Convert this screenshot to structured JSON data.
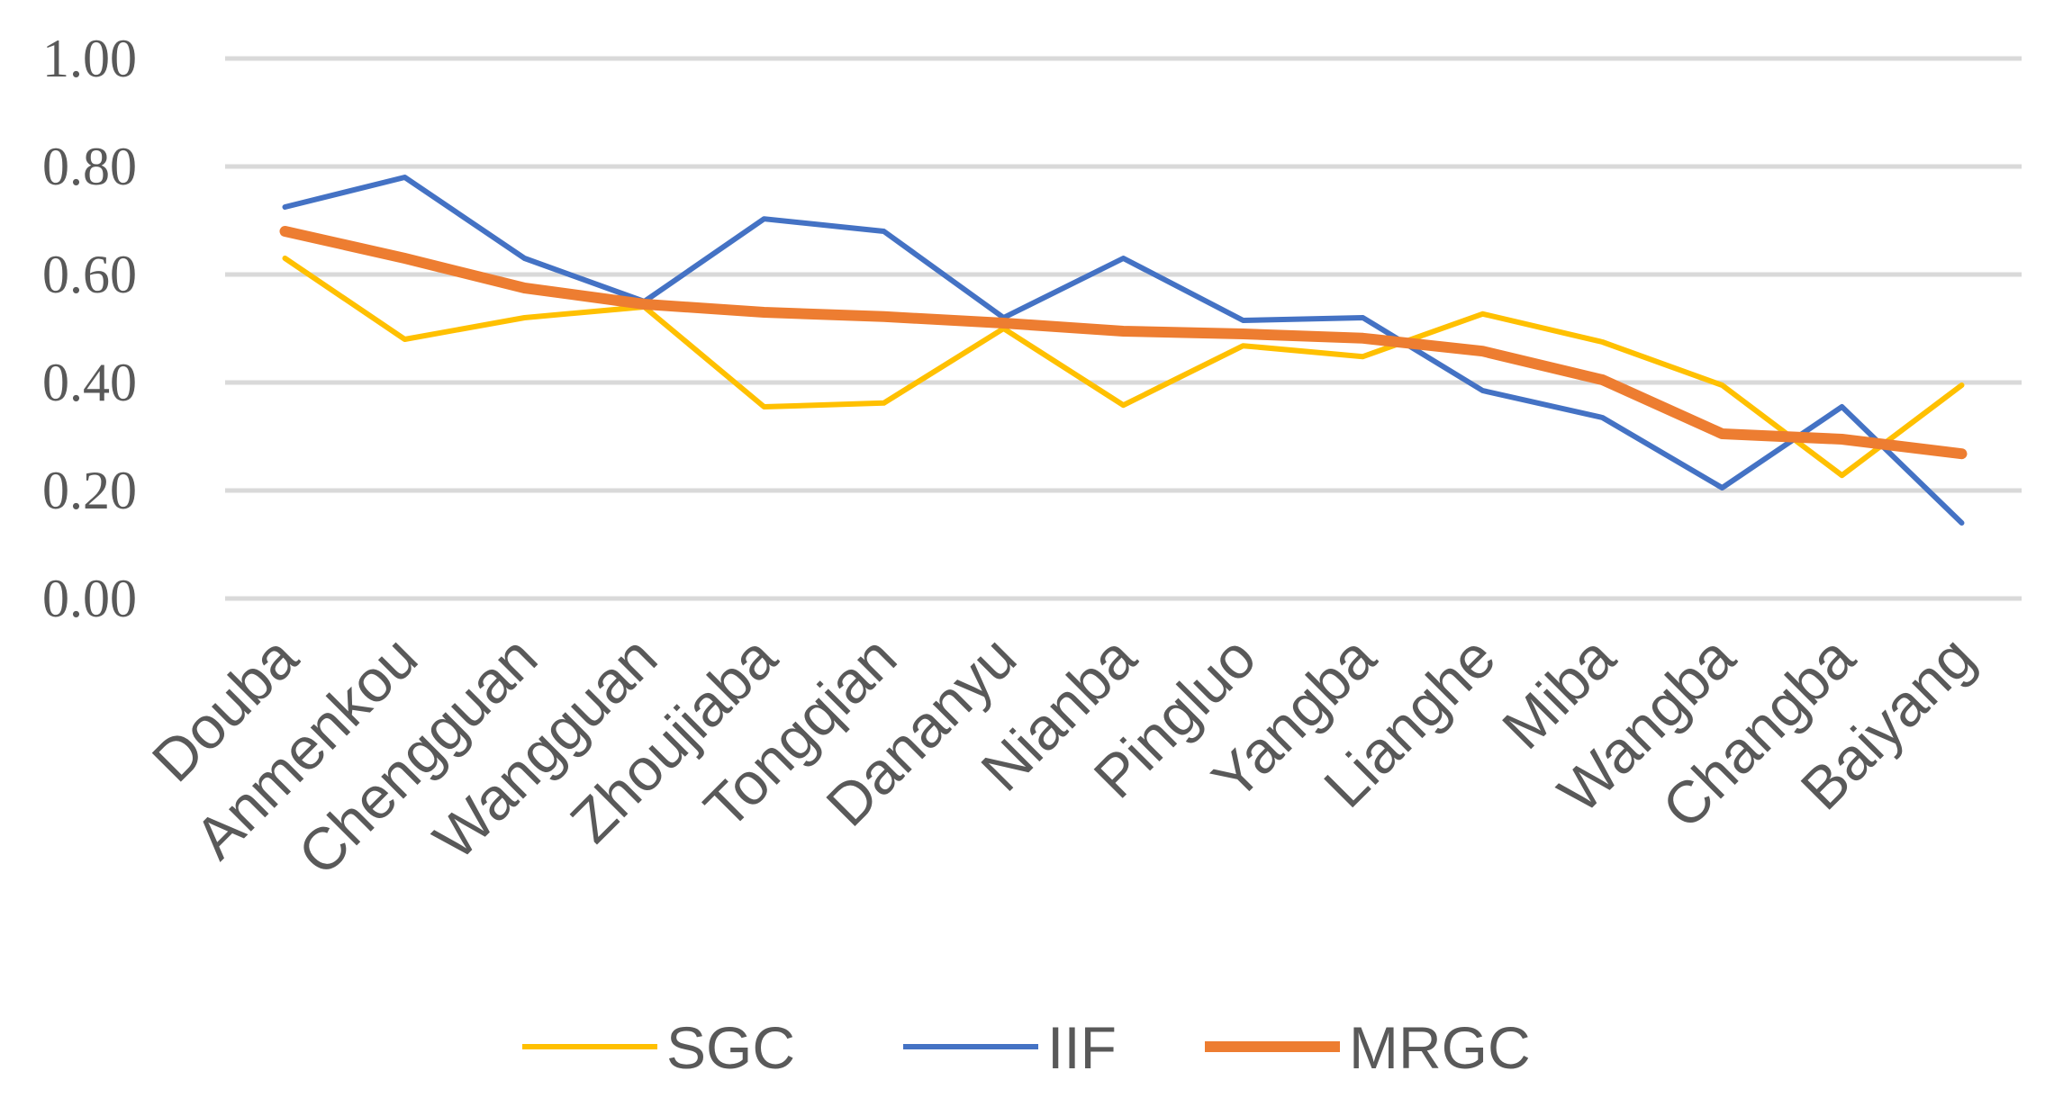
{
  "chart_data": {
    "type": "line",
    "title": "",
    "xlabel": "",
    "ylabel": "",
    "ylim": [
      0,
      1.0
    ],
    "yticks": [
      "0.00",
      "0.20",
      "0.40",
      "0.60",
      "0.80",
      "1.00"
    ],
    "ytick_values": [
      0,
      0.2,
      0.4,
      0.6,
      0.8,
      1.0
    ],
    "grid": true,
    "legend_position": "bottom",
    "categories": [
      "Douba",
      "Anmenkou",
      "Chengguan",
      "Wangguan",
      "Zhoujiaba",
      "Tongqian",
      "Dananyu",
      "Nianba",
      "Pingluo",
      "Yangba",
      "Lianghe",
      "Miba",
      "Wangba",
      "Changba",
      "Baiyang"
    ],
    "series": [
      {
        "name": "SGC",
        "color": "#ffc000",
        "values": [
          0.63,
          0.48,
          0.52,
          0.54,
          0.355,
          0.362,
          0.5,
          0.358,
          0.468,
          0.448,
          0.527,
          0.475,
          0.395,
          0.228,
          0.395
        ]
      },
      {
        "name": "IIF",
        "color": "#4472c4",
        "values": [
          0.725,
          0.78,
          0.63,
          0.55,
          0.703,
          0.68,
          0.52,
          0.63,
          0.515,
          0.52,
          0.385,
          0.335,
          0.205,
          0.355,
          0.14
        ]
      },
      {
        "name": "MRGC",
        "color": "#ed7d31",
        "values": [
          0.68,
          0.63,
          0.575,
          0.545,
          0.53,
          0.522,
          0.51,
          0.495,
          0.49,
          0.482,
          0.458,
          0.405,
          0.305,
          0.295,
          0.268
        ]
      }
    ]
  }
}
